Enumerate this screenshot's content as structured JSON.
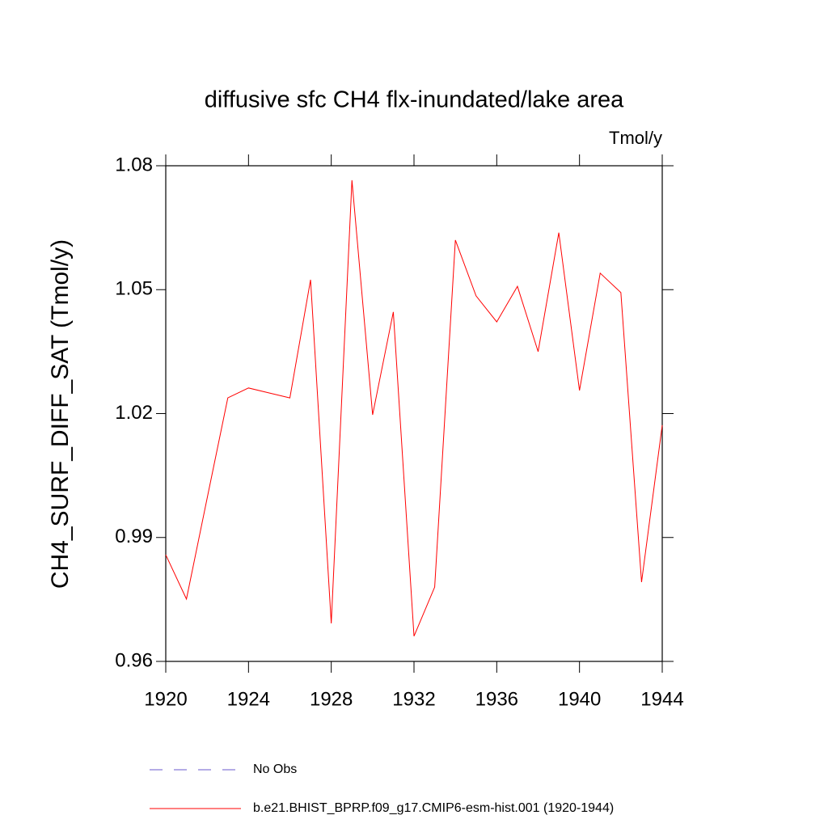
{
  "chart_data": {
    "type": "line",
    "title": "diffusive sfc CH4 flx-inundated/lake area",
    "units": "Tmol/y",
    "ylabel": "CH4_SURF_DIFF_SAT  (Tmol/y)",
    "x": [
      1920,
      1921,
      1922,
      1923,
      1924,
      1925,
      1926,
      1927,
      1928,
      1929,
      1930,
      1931,
      1932,
      1933,
      1934,
      1935,
      1936,
      1937,
      1938,
      1939,
      1940,
      1941,
      1942,
      1943,
      1944
    ],
    "series": [
      {
        "name": "No Obs",
        "color": "#6a5acd",
        "dash": true,
        "values": [
          null,
          null,
          null,
          null,
          null,
          null,
          null,
          null,
          null,
          null,
          null,
          null,
          null,
          null,
          null,
          null,
          null,
          null,
          null,
          null,
          null,
          null,
          null,
          null,
          null
        ]
      },
      {
        "name": "b.e21.BHIST_BPRP.f09_g17.CMIP6-esm-hist.001 (1920-1944)",
        "color": "#ff0000",
        "dash": false,
        "values": [
          0.9858,
          0.9751,
          0.9995,
          1.0238,
          1.0262,
          1.025,
          1.0238,
          1.0524,
          0.9692,
          1.0765,
          1.0197,
          1.0446,
          0.9661,
          0.978,
          1.062,
          1.0485,
          1.0422,
          1.0508,
          1.035,
          1.0638,
          1.0256,
          1.054,
          1.0493,
          0.9792,
          1.0172
        ]
      }
    ],
    "xlim": [
      1920,
      1944
    ],
    "xticks": [
      1920,
      1924,
      1928,
      1932,
      1936,
      1940,
      1944
    ],
    "ylim": [
      0.96,
      1.08
    ],
    "yticks": [
      0.96,
      0.99,
      1.02,
      1.05,
      1.08
    ],
    "grid": false
  }
}
